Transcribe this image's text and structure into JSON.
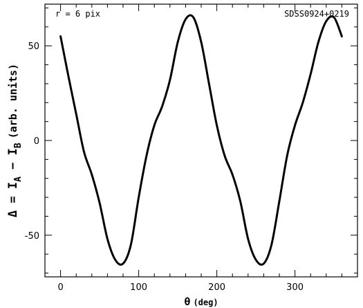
{
  "chart_data": {
    "type": "line",
    "annotation_left": "r = 6 pix",
    "annotation_right": "SDSS0924+0219",
    "xlabel": {
      "symbol": "θ",
      "unit": "(deg)"
    },
    "ylabel": {
      "lhs": "Δ = I",
      "sub_a": "A",
      "minus": " − I",
      "sub_b": "B",
      "unit": "(arb. units)"
    },
    "xlim": [
      -20,
      380
    ],
    "ylim": [
      -72,
      72
    ],
    "xticks": [
      0,
      100,
      200,
      300
    ],
    "yticks": [
      -50,
      0,
      50
    ],
    "x_minor_step": 20,
    "y_minor_step": 10,
    "line_color": "#000000",
    "series": [
      {
        "x": [
          0,
          10,
          20,
          30,
          40,
          50,
          60,
          70,
          80,
          90,
          100,
          110,
          120,
          130,
          140,
          150,
          160,
          170,
          180,
          190,
          200,
          210,
          220,
          230,
          240,
          250,
          260,
          270,
          280,
          290,
          300,
          310,
          320,
          330,
          340,
          350,
          360
        ],
        "y": [
          55,
          34,
          14,
          -6,
          -18,
          -33,
          -52,
          -63,
          -65,
          -55,
          -30,
          -8,
          8,
          18,
          32,
          52,
          64,
          65,
          52,
          30,
          8,
          -8,
          -18,
          -32,
          -52,
          -63,
          -65,
          -55,
          -32,
          -8,
          8,
          20,
          35,
          52,
          63,
          65,
          55
        ]
      }
    ]
  }
}
